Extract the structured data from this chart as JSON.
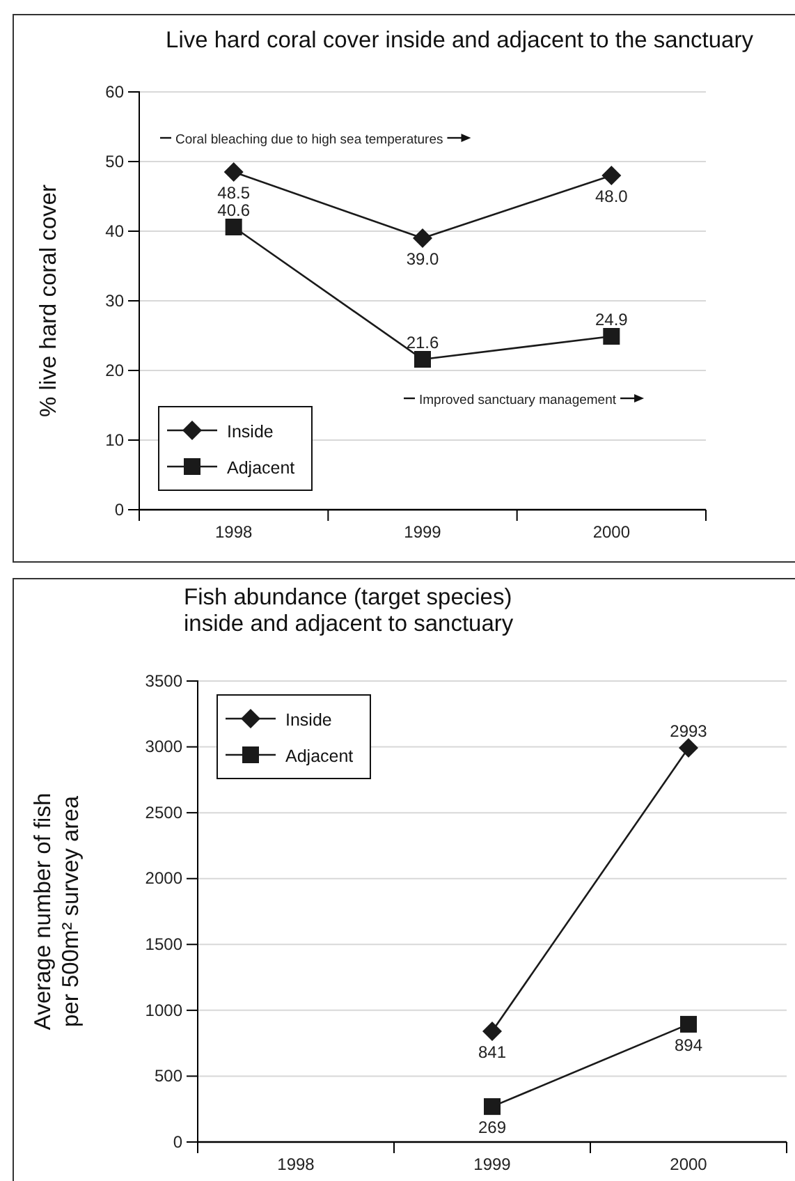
{
  "chart_data": [
    {
      "type": "line",
      "title": "Live hard coral cover inside and adjacent to the sanctuary",
      "ylabel": "% live hard coral cover",
      "categories": [
        "1998",
        "1999",
        "2000"
      ],
      "series": [
        {
          "name": "Inside",
          "color": "#1a1a1a",
          "marker": "diamond",
          "values": [
            48.5,
            39.0,
            48.0
          ],
          "value_labels": [
            "48.5",
            "39.0",
            "48.0"
          ]
        },
        {
          "name": "Adjacent",
          "color": "#1a1a1a",
          "marker": "square",
          "values": [
            40.6,
            21.6,
            24.9
          ],
          "value_labels": [
            "40.6",
            "21.6",
            "24.9"
          ]
        }
      ],
      "ylim": [
        0,
        60
      ],
      "yticks": [
        0,
        10,
        20,
        30,
        40,
        50,
        60
      ],
      "grid": "y",
      "legend": "bottom left",
      "annotations": [
        "Coral bleaching due to high sea temperatures",
        "Improved sanctuary management"
      ]
    },
    {
      "type": "line",
      "title": "Fish abundance (target species)\ninside and adjacent to sanctuary",
      "ylabel": "Average number of fish\nper 500m² survey area",
      "categories": [
        "1998",
        "1999",
        "2000"
      ],
      "series": [
        {
          "name": "Inside",
          "color": "#1a1a1a",
          "marker": "diamond",
          "values": [
            null,
            841,
            2993
          ]
        },
        {
          "name": "Adjacent",
          "color": "#1a1a1a",
          "marker": "square",
          "values": [
            null,
            269,
            894
          ]
        }
      ],
      "ylim": [
        0,
        3500
      ],
      "yticks": [
        0,
        500,
        1000,
        1500,
        2000,
        2500,
        3000,
        3500
      ],
      "grid": "y",
      "legend": "top left",
      "data_labels": true
    }
  ]
}
